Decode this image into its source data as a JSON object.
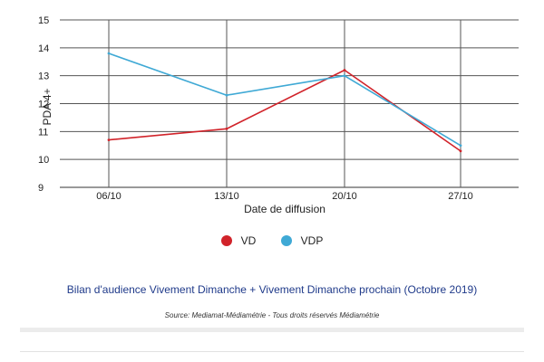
{
  "chart_data": {
    "type": "line",
    "categories": [
      "06/10",
      "13/10",
      "20/10",
      "27/10"
    ],
    "series": [
      {
        "name": "VD",
        "color": "#d1232a",
        "values": [
          10.7,
          11.1,
          13.2,
          10.3
        ]
      },
      {
        "name": "VDP",
        "color": "#3fa9d5",
        "values": [
          13.8,
          12.3,
          13.0,
          10.5
        ]
      }
    ],
    "xlabel": "Date de diffusion",
    "ylabel": "PDA 4+",
    "ylim": [
      9,
      15
    ],
    "yticks": [
      "15",
      "14",
      "13",
      "12",
      "11",
      "10",
      "9"
    ],
    "grid": true,
    "legend_position": "bottom"
  },
  "caption": "Bilan d'audience Vivement Dimanche + Vivement Dimanche prochain (Octobre 2019)",
  "source": "Source: Mediamat-Médiamétrie - Tous droits réservés Médiamétrie"
}
